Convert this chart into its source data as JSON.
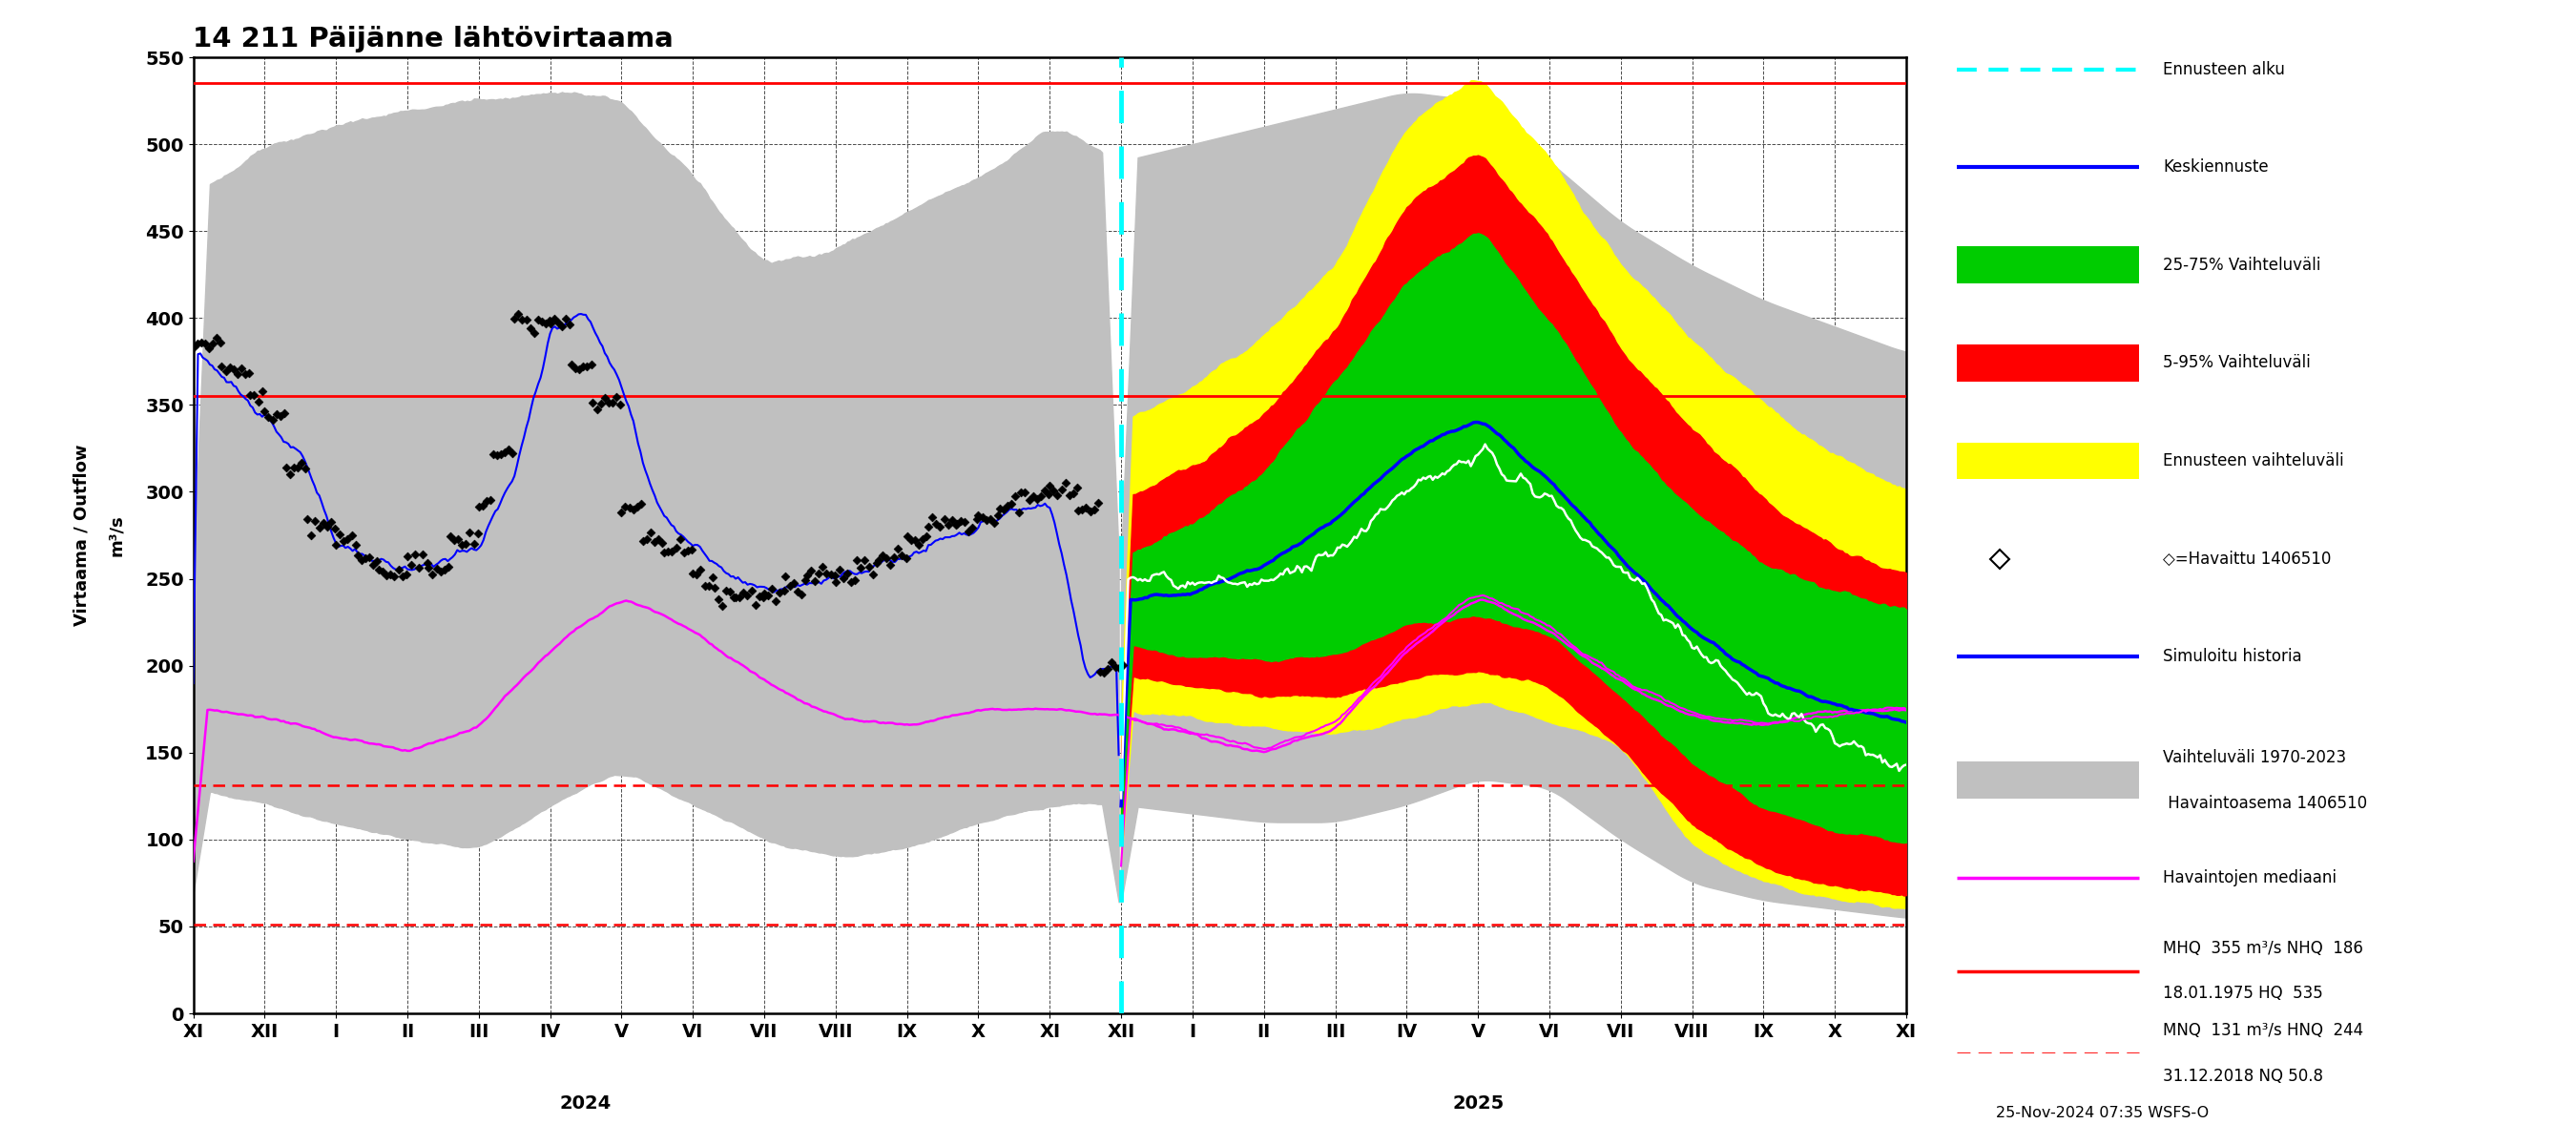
{
  "title": "14 211 Päijänne lähtövirtaama",
  "ylabel_left": "Virtaama / Outflow",
  "ylabel_right": "m³/s",
  "ylim": [
    0,
    550
  ],
  "yticks": [
    0,
    50,
    100,
    150,
    200,
    250,
    300,
    350,
    400,
    450,
    500,
    550
  ],
  "timestamp": "25-Nov-2024 07:35 WSFS-O",
  "hq_line": 535,
  "mnq_line": 131,
  "mhq_line": 355,
  "nq_line": 50.8,
  "forecast_start_x": 13.0,
  "x_tick_labels": [
    "XI",
    "XII",
    "I",
    "II",
    "III",
    "IV",
    "V",
    "VI",
    "VII",
    "VIII",
    "IX",
    "X",
    "XI",
    "XII",
    "I",
    "II",
    "III",
    "IV",
    "V",
    "VI",
    "VII",
    "VIII",
    "IX",
    "X",
    "XI"
  ],
  "x_tick_positions": [
    0,
    1,
    2,
    3,
    4,
    5,
    6,
    7,
    8,
    9,
    10,
    11,
    12,
    13,
    14,
    15,
    16,
    17,
    18,
    19,
    20,
    21,
    22,
    23,
    24
  ],
  "year_2024_x": 5.5,
  "year_2025_x": 18.0,
  "bg_color": "#ffffff",
  "hist_range_color": "#c0c0c0",
  "forecast_5_95_color": "#ff0000",
  "forecast_25_75_color": "#00cc00",
  "forecast_envelope_color": "#ffff00",
  "median_forecast_color": "#0000ff",
  "observed_median_color": "#ff00ff",
  "sim_history_color": "#ffffff",
  "sim_history_blue_color": "#0000ff",
  "observed_color": "#000000",
  "cyan_line_color": "#00ffff"
}
